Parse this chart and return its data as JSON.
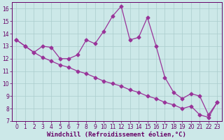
{
  "xlabel": "Windchill (Refroidissement éolien,°C)",
  "line1_x": [
    0,
    1,
    2,
    3,
    4,
    5,
    6,
    7,
    8,
    9,
    10,
    11,
    12,
    13,
    14,
    15,
    16,
    17,
    18,
    19,
    20,
    21,
    22,
    23
  ],
  "line1_y": [
    13.5,
    13.0,
    12.5,
    13.0,
    12.9,
    12.0,
    12.0,
    12.3,
    13.5,
    13.2,
    14.2,
    15.4,
    16.2,
    13.5,
    13.7,
    15.3,
    13.0,
    10.5,
    9.3,
    8.8,
    9.2,
    9.0,
    7.5,
    8.5
  ],
  "line2_x": [
    0,
    1,
    2,
    3,
    4,
    5,
    6,
    7,
    8,
    9,
    10,
    11,
    12,
    13,
    14,
    15,
    16,
    17,
    18,
    19,
    20,
    21,
    22,
    23
  ],
  "line2_y": [
    13.5,
    13.0,
    12.5,
    12.1,
    11.8,
    11.5,
    11.3,
    11.0,
    10.8,
    10.5,
    10.2,
    10.0,
    9.8,
    9.5,
    9.3,
    9.0,
    8.8,
    8.5,
    8.3,
    8.0,
    8.2,
    7.5,
    7.3,
    8.5
  ],
  "line_color": "#993399",
  "marker": "D",
  "markersize": 2.5,
  "linewidth": 0.9,
  "bg_color": "#cce8e8",
  "grid_color": "#aacccc",
  "axis_color": "#660066",
  "text_color": "#660066",
  "xlim_min": -0.5,
  "xlim_max": 23.5,
  "ylim_min": 7,
  "ylim_max": 16.5,
  "xticks": [
    0,
    1,
    2,
    3,
    4,
    5,
    6,
    7,
    8,
    9,
    10,
    11,
    12,
    13,
    14,
    15,
    16,
    17,
    18,
    19,
    20,
    21,
    22,
    23
  ],
  "yticks": [
    7,
    8,
    9,
    10,
    11,
    12,
    13,
    14,
    15,
    16
  ],
  "tick_fontsize": 5.5,
  "label_fontsize": 6.5
}
